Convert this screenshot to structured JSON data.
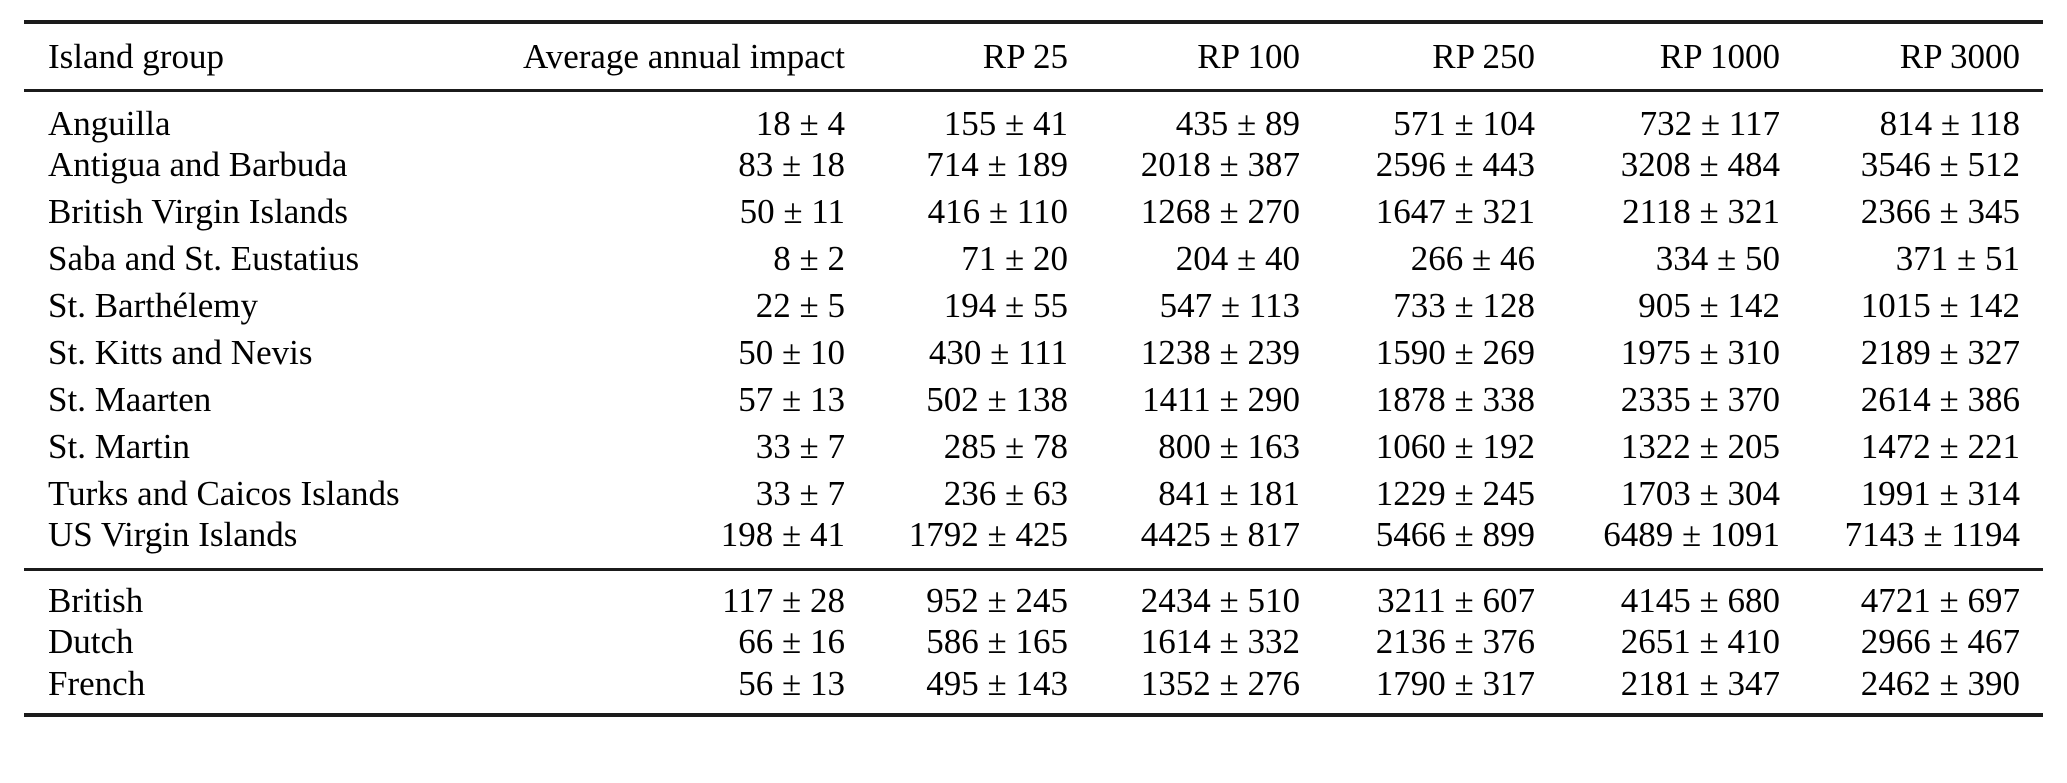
{
  "table": {
    "title_semantic": "Return-period impact estimates by island group",
    "columns": [
      "Island group",
      "Average annual impact",
      "RP 25",
      "RP 100",
      "RP 250",
      "RP 1000",
      "RP 3000"
    ],
    "rows": [
      {
        "label": "Anguilla",
        "values": [
          "18 ± 4",
          "155 ± 41",
          "435 ± 89",
          "571 ± 104",
          "732 ± 117",
          "814 ± 118"
        ]
      },
      {
        "label": "Antigua and Barbuda",
        "values": [
          "83 ± 18",
          "714 ± 189",
          "2018 ± 387",
          "2596 ± 443",
          "3208 ± 484",
          "3546 ± 512"
        ]
      },
      {
        "label": "British Virgin Islands",
        "values": [
          "50 ± 11",
          "416 ± 110",
          "1268 ± 270",
          "1647 ± 321",
          "2118 ± 321",
          "2366 ± 345"
        ]
      },
      {
        "label": "Saba and St. Eustatius",
        "values": [
          "8 ± 2",
          "71 ± 20",
          "204 ± 40",
          "266 ± 46",
          "334 ± 50",
          "371 ± 51"
        ]
      },
      {
        "label": "St. Barthélemy",
        "values": [
          "22 ± 5",
          "194 ± 55",
          "547 ± 113",
          "733 ± 128",
          "905 ± 142",
          "1015 ± 142"
        ]
      },
      {
        "label": "St. Kitts and Nevis",
        "values": [
          "50 ± 10",
          "430 ± 111",
          "1238 ± 239",
          "1590 ± 269",
          "1975 ± 310",
          "2189 ± 327"
        ]
      },
      {
        "label": "St. Maarten",
        "values": [
          "57 ± 13",
          "502 ± 138",
          "1411 ± 290",
          "1878 ± 338",
          "2335 ± 370",
          "2614 ± 386"
        ]
      },
      {
        "label": "St. Martin",
        "values": [
          "33 ± 7",
          "285 ± 78",
          "800 ± 163",
          "1060 ± 192",
          "1322 ± 205",
          "1472 ± 221"
        ]
      },
      {
        "label": "Turks and Caicos Islands",
        "values": [
          "33 ± 7",
          "236 ± 63",
          "841 ± 181",
          "1229 ± 245",
          "1703 ± 304",
          "1991 ± 314"
        ]
      },
      {
        "label": "US Virgin Islands",
        "values": [
          "198 ± 41",
          "1792 ± 425",
          "4425 ± 817",
          "5466 ± 899",
          "6489 ± 1091",
          "7143 ± 1194"
        ]
      }
    ],
    "summary_rows": [
      {
        "label": "British",
        "values": [
          "117 ± 28",
          "952 ± 245",
          "2434 ± 510",
          "3211 ± 607",
          "4145 ± 680",
          "4721 ± 697"
        ]
      },
      {
        "label": "Dutch",
        "values": [
          "66 ± 16",
          "586 ± 165",
          "1614 ± 332",
          "2136 ± 376",
          "2651 ± 410",
          "2966 ± 467"
        ]
      },
      {
        "label": "French",
        "values": [
          "56 ± 13",
          "495 ± 143",
          "1352 ± 276",
          "1790 ± 317",
          "2181 ± 347",
          "2462 ± 390"
        ]
      }
    ],
    "colors": {
      "text": "#000000",
      "rule": "#1b1b1b",
      "background": "#ffffff"
    }
  }
}
